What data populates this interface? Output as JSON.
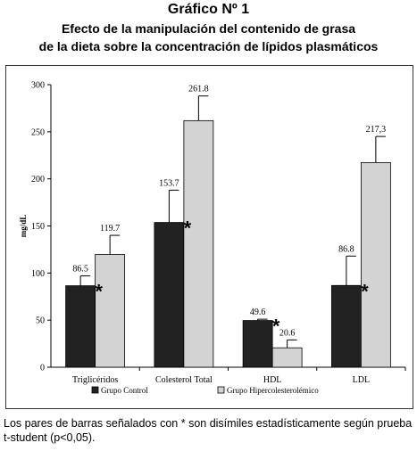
{
  "header": {
    "title": "Gráfico Nº 1",
    "subtitle_line1": "Efecto de la manipulación del contenido de grasa",
    "subtitle_line2": "de la dieta sobre la concentración de lípidos plasmáticos"
  },
  "chart_data": {
    "type": "bar",
    "ylabel": "mg/dL",
    "ylim": [
      0,
      300
    ],
    "yticks": [
      0,
      50,
      100,
      150,
      200,
      250,
      300
    ],
    "categories": [
      "Triglicéridos",
      "Colesterol Total",
      "HDL",
      "LDL"
    ],
    "series": [
      {
        "name": "Grupo Control",
        "color": "#222222",
        "values": [
          86.5,
          153.7,
          49.6,
          86.8
        ],
        "labels": [
          "86.5",
          "153.7",
          "49.6",
          "86.8"
        ],
        "error_high": [
          97,
          188,
          51,
          118
        ]
      },
      {
        "name": "Grupo Hipercolesterolémico",
        "color": "#d3d3d3",
        "values": [
          119.7,
          261.8,
          20.6,
          217.3
        ],
        "labels": [
          "119.7",
          "261.8",
          "20.6",
          "217,3"
        ],
        "error_high": [
          140,
          288,
          29,
          245
        ]
      }
    ],
    "significance_marker": "*",
    "significant_pairs": [
      true,
      true,
      true,
      true
    ],
    "legend_position": "bottom",
    "grid": false
  },
  "footnote": "Los pares de barras señalados con * son disímiles estadísticamente según prueba t-student (p<0,05)."
}
